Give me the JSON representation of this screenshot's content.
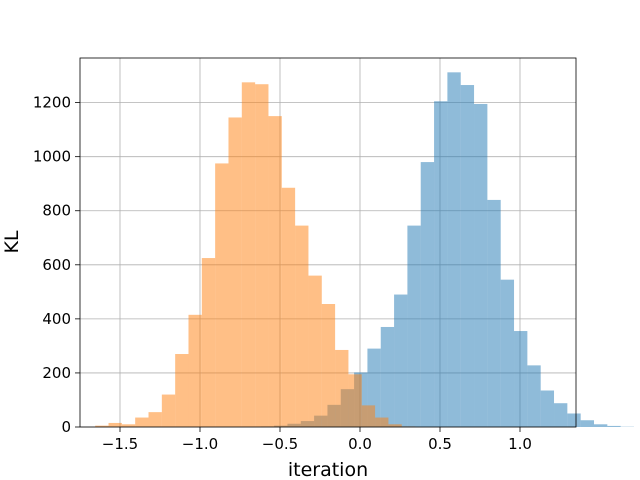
{
  "chart_data": {
    "type": "bar",
    "xlabel": "iteration",
    "ylabel": "KL",
    "xlim": [
      -1.75,
      1.35
    ],
    "ylim": [
      0,
      1365
    ],
    "grid": true,
    "x_ticks": [
      -1.5,
      -1.0,
      -0.5,
      0.0,
      0.5,
      1.0
    ],
    "x_tick_labels": [
      "−1.5",
      "−1.0",
      "−0.5",
      "0.0",
      "0.5",
      "1.0"
    ],
    "y_ticks": [
      0,
      200,
      400,
      600,
      800,
      1000,
      1200
    ],
    "y_tick_labels": [
      "0",
      "200",
      "400",
      "600",
      "800",
      "1000",
      "1200"
    ],
    "series": [
      {
        "color": "#1f77b4",
        "opacity": 0.5,
        "bin_start": -0.62,
        "bin_width": 0.0833,
        "counts": [
          2,
          5,
          12,
          22,
          42,
          82,
          140,
          202,
          290,
          370,
          490,
          745,
          980,
          1205,
          1312,
          1265,
          1195,
          840,
          545,
          355,
          228,
          135,
          88,
          50,
          25,
          10,
          4,
          1
        ]
      },
      {
        "color": "#ff7f0e",
        "opacity": 0.5,
        "bin_start": -1.655,
        "bin_width": 0.0833,
        "counts": [
          5,
          15,
          10,
          35,
          55,
          120,
          270,
          415,
          625,
          975,
          1145,
          1275,
          1268,
          1150,
          885,
          745,
          560,
          455,
          285,
          195,
          80,
          35,
          10,
          2
        ]
      }
    ]
  }
}
